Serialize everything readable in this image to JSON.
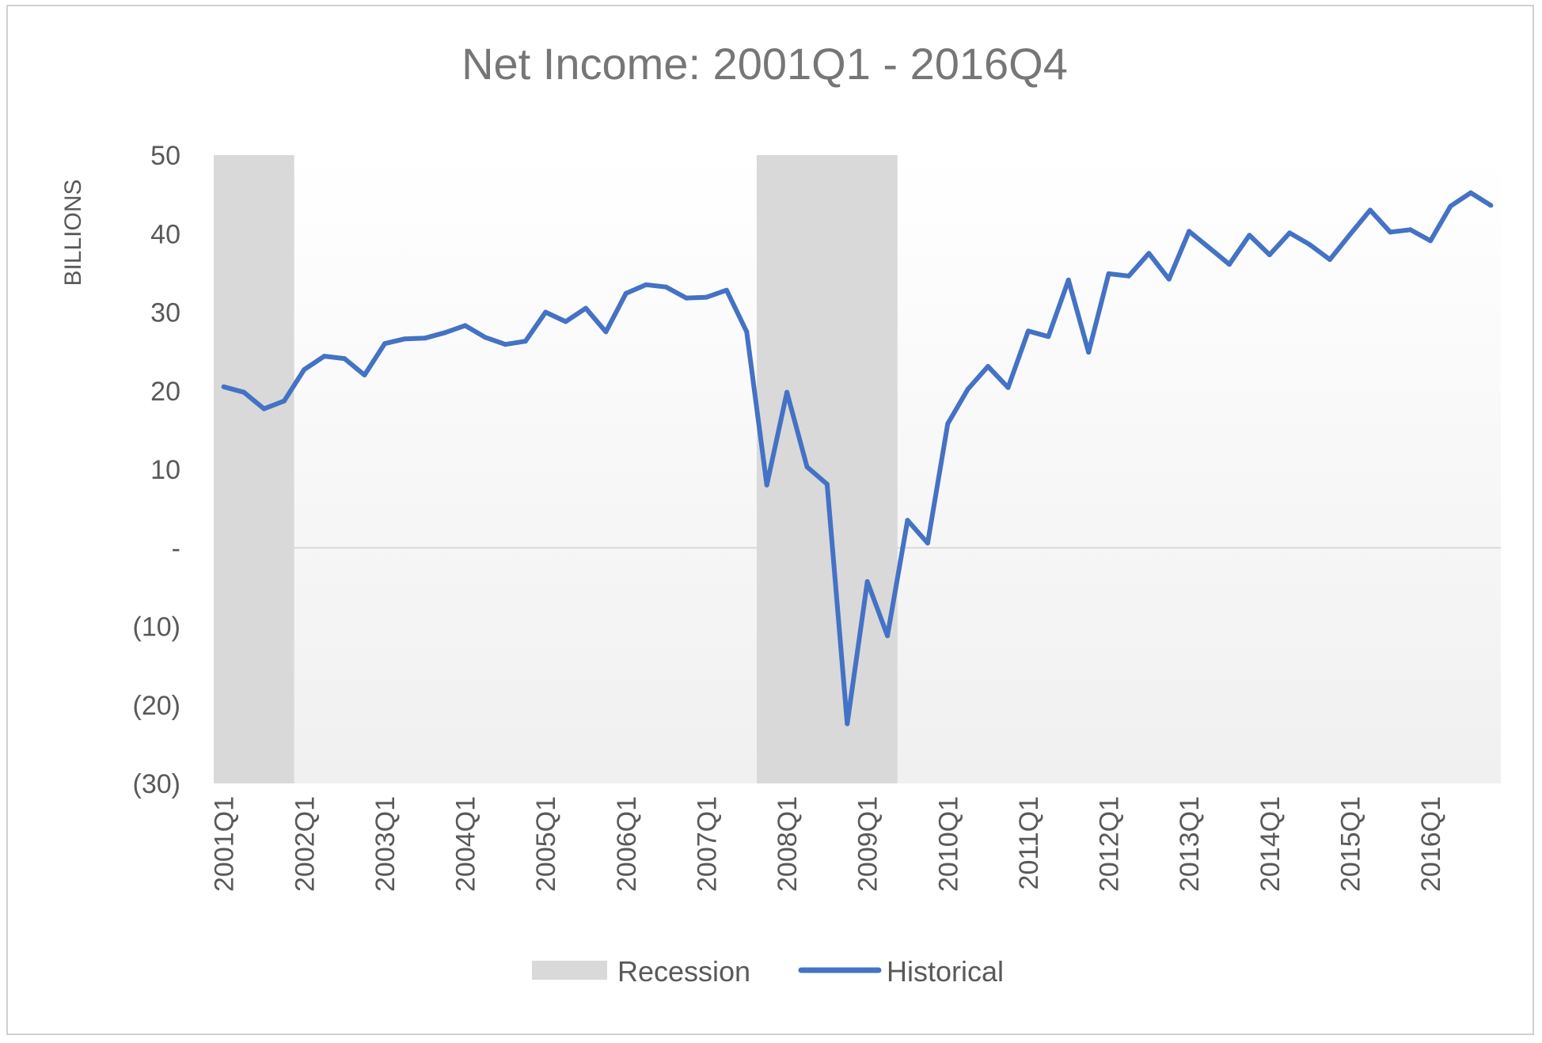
{
  "chart_data": {
    "type": "line",
    "title": "Net Income: 2001Q1 - 2016Q4",
    "ylabel": "BILLIONS",
    "xlabel": "",
    "ylim": [
      -30,
      50
    ],
    "y_ticks": [
      {
        "value": 50,
        "label": "50"
      },
      {
        "value": 40,
        "label": "40"
      },
      {
        "value": 30,
        "label": "30"
      },
      {
        "value": 20,
        "label": "20"
      },
      {
        "value": 10,
        "label": "10"
      },
      {
        "value": 0,
        "label": "-"
      },
      {
        "value": -10,
        "label": "(10)"
      },
      {
        "value": -20,
        "label": "(20)"
      },
      {
        "value": -30,
        "label": "(30)"
      }
    ],
    "x_tick_labels": [
      "2001Q1",
      "2002Q1",
      "2003Q1",
      "2004Q1",
      "2005Q1",
      "2006Q1",
      "2007Q1",
      "2008Q1",
      "2009Q1",
      "2010Q1",
      "2011Q1",
      "2012Q1",
      "2013Q1",
      "2014Q1",
      "2015Q1",
      "2016Q1"
    ],
    "legend_position": "bottom",
    "colors": {
      "historical": "#4472C4",
      "recession": "#D9D9D9",
      "zero_line": "#D9D9D9"
    },
    "recessions": [
      {
        "start": "2001Q1",
        "end": "2001Q4"
      },
      {
        "start": "2007Q4",
        "end": "2009Q2"
      }
    ],
    "series": [
      {
        "name": "Historical",
        "x": [
          "2001Q1",
          "2001Q2",
          "2001Q3",
          "2001Q4",
          "2002Q1",
          "2002Q2",
          "2002Q3",
          "2002Q4",
          "2003Q1",
          "2003Q2",
          "2003Q3",
          "2003Q4",
          "2004Q1",
          "2004Q2",
          "2004Q3",
          "2004Q4",
          "2005Q1",
          "2005Q2",
          "2005Q3",
          "2005Q4",
          "2006Q1",
          "2006Q2",
          "2006Q3",
          "2006Q4",
          "2007Q1",
          "2007Q2",
          "2007Q3",
          "2007Q4",
          "2008Q1",
          "2008Q2",
          "2008Q3",
          "2008Q4",
          "2009Q1",
          "2009Q2",
          "2009Q3",
          "2009Q4",
          "2010Q1",
          "2010Q2",
          "2010Q3",
          "2010Q4",
          "2011Q1",
          "2011Q2",
          "2011Q3",
          "2011Q4",
          "2012Q1",
          "2012Q2",
          "2012Q3",
          "2012Q4",
          "2013Q1",
          "2013Q2",
          "2013Q3",
          "2013Q4",
          "2014Q1",
          "2014Q2",
          "2014Q3",
          "2014Q4",
          "2015Q1",
          "2015Q2",
          "2015Q3",
          "2015Q4",
          "2016Q1",
          "2016Q2",
          "2016Q3",
          "2016Q4"
        ],
        "values": [
          20.5,
          19.8,
          17.7,
          18.7,
          22.7,
          24.4,
          24.1,
          22.0,
          26.0,
          26.6,
          26.7,
          27.4,
          28.3,
          26.8,
          25.9,
          26.3,
          30.0,
          28.8,
          30.5,
          27.5,
          32.4,
          33.5,
          33.2,
          31.8,
          31.9,
          32.8,
          27.5,
          8.0,
          19.8,
          10.3,
          8.1,
          -22.4,
          -4.3,
          -11.2,
          3.5,
          0.6,
          15.8,
          20.2,
          23.1,
          20.4,
          27.6,
          26.9,
          34.1,
          24.9,
          34.9,
          34.6,
          37.5,
          34.2,
          40.3,
          38.2,
          36.1,
          39.8,
          37.3,
          40.1,
          38.6,
          36.7,
          39.9,
          43.0,
          40.2,
          40.5,
          39.1,
          43.5,
          45.2,
          43.6
        ]
      },
      {
        "name": "Recession"
      }
    ]
  }
}
